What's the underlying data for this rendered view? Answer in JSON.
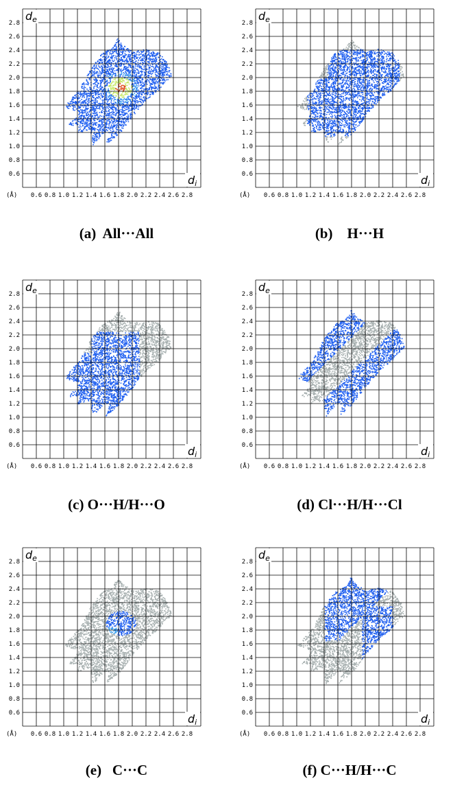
{
  "axes": {
    "y_label": "d",
    "y_label_sub": "e",
    "x_label": "d",
    "x_label_sub": "i",
    "unit_label": "(Å)",
    "y_ticks": [
      "2.8",
      "2.6",
      "2.4",
      "2.2",
      "2.0",
      "1.8",
      "1.6",
      "1.4",
      "1.2",
      "1.0",
      "0.8",
      "0.6"
    ],
    "x_ticks": [
      "0.6",
      "0.8",
      "1.0",
      "1.2",
      "1.4",
      "1.6",
      "1.8",
      "2.0",
      "2.2",
      "2.4",
      "2.6",
      "2.8"
    ]
  },
  "colors": {
    "background_points": "#a7b0b0",
    "highlight_points": "#1f5ff0",
    "light_highlight": "#3aa0f0",
    "center_hot": "#c8e86a",
    "center_red": "#e05020",
    "grid": "#000000"
  },
  "chart_data": [
    {
      "type": "scatter",
      "panel": "a",
      "caption": "(a)  All···All",
      "highlight": "all",
      "x_range": [
        0.4,
        3.0
      ],
      "y_range": [
        0.4,
        3.0
      ],
      "grid": true
    },
    {
      "type": "scatter",
      "panel": "b",
      "caption": "(b)    H···H",
      "highlight": "hh",
      "x_range": [
        0.4,
        3.0
      ],
      "y_range": [
        0.4,
        3.0
      ],
      "grid": true
    },
    {
      "type": "scatter",
      "panel": "c",
      "caption": "(c) O···H/H···O",
      "highlight": "oh",
      "x_range": [
        0.4,
        3.0
      ],
      "y_range": [
        0.4,
        3.0
      ],
      "grid": true
    },
    {
      "type": "scatter",
      "panel": "d",
      "caption": "(d) Cl···H/H···Cl",
      "highlight": "clh",
      "x_range": [
        0.4,
        3.0
      ],
      "y_range": [
        0.4,
        3.0
      ],
      "grid": true
    },
    {
      "type": "scatter",
      "panel": "e",
      "caption": "(e)   C···C",
      "highlight": "cc",
      "x_range": [
        0.4,
        3.0
      ],
      "y_range": [
        0.4,
        3.0
      ],
      "grid": true
    },
    {
      "type": "scatter",
      "panel": "f",
      "caption": "(f) C···H/H···C",
      "highlight": "ch",
      "x_range": [
        0.4,
        3.0
      ],
      "y_range": [
        0.4,
        3.0
      ],
      "grid": true
    }
  ]
}
